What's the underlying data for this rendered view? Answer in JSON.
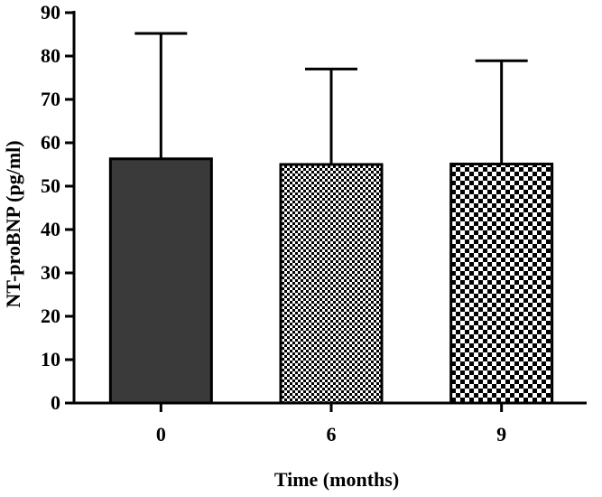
{
  "chart_data": {
    "type": "bar",
    "title": "",
    "xlabel": "Time (months)",
    "ylabel": "NT-proBNP (pg/ml)",
    "categories": [
      "0",
      "6",
      "9"
    ],
    "series": [
      {
        "values": [
          56.3,
          55.0,
          55.1
        ],
        "error_upper": [
          85.2,
          77.0,
          78.9
        ]
      }
    ],
    "ylim": [
      0,
      90
    ],
    "yticks": [
      "0",
      "10",
      "20",
      "30",
      "40",
      "50",
      "60",
      "70",
      "80",
      "90"
    ],
    "grid": false,
    "legend": "none",
    "bar_styles": [
      {
        "fill": "solid",
        "color": "#3a3a3a"
      },
      {
        "fill": "fine-checker",
        "color": "#000000"
      },
      {
        "fill": "coarse-checker",
        "color": "#000000"
      }
    ]
  }
}
